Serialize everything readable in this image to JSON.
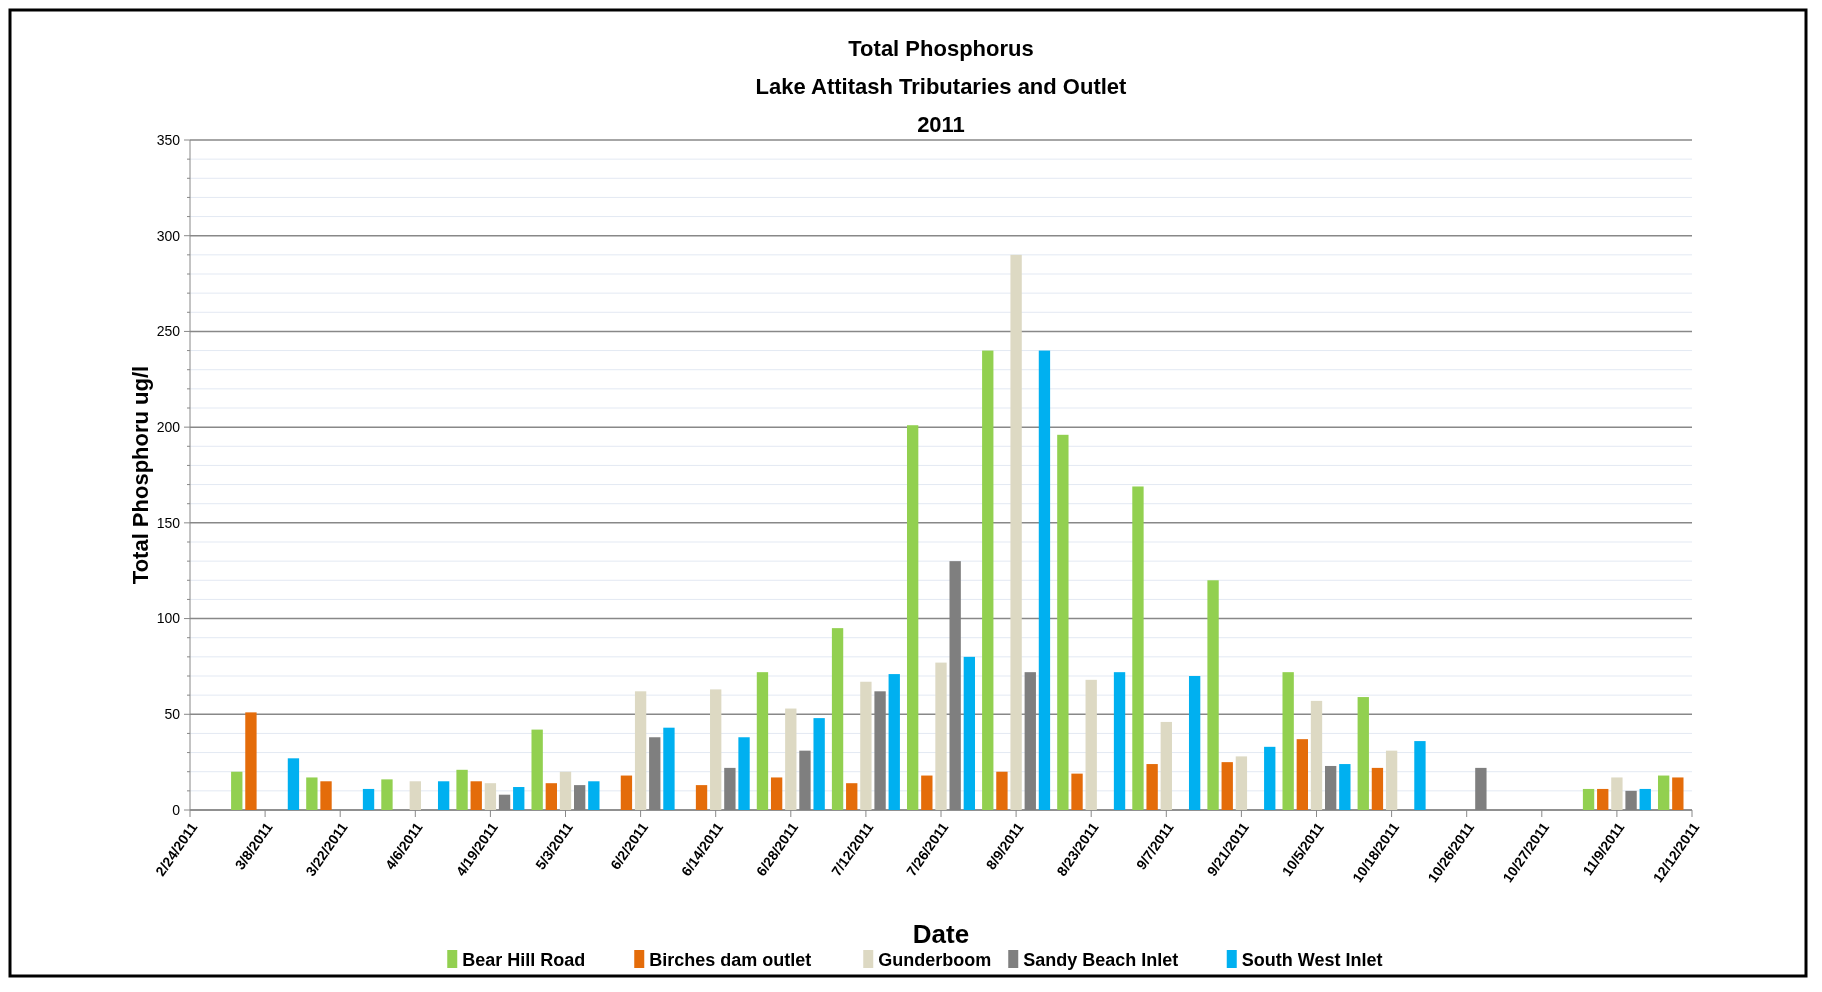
{
  "chart_data": {
    "type": "bar",
    "title": "Total Phosphorus\nLake Attitash Tributaries and Outlet\n2011",
    "xlabel": "Date",
    "ylabel": "Total Phosphoru ug/l",
    "categories": [
      "2/24/2011",
      "3/8/2011",
      "3/22/2011",
      "4/6/2011",
      "4/19/2011",
      "5/3/2011",
      "6/2/2011",
      "6/14/2011",
      "6/28/2011",
      "7/12/2011",
      "7/26/2011",
      "8/9/2011",
      "8/23/2011",
      "9/7/2011",
      "9/21/2011",
      "10/5/2011",
      "10/18/2011",
      "10/26/2011",
      "10/27/2011",
      "11/9/2011",
      "12/12/2011"
    ],
    "series": [
      {
        "name": "Bear Hill Road",
        "color": "#92d050",
        "values": [
          null,
          20,
          17,
          16,
          21,
          42,
          null,
          null,
          72,
          95,
          201,
          240,
          196,
          169,
          120,
          72,
          59,
          null,
          null,
          11,
          18
        ]
      },
      {
        "name": "Birches dam outlet",
        "color": "#e46c0a",
        "values": [
          null,
          51,
          15,
          null,
          15,
          14,
          18,
          13,
          17,
          14,
          18,
          20,
          19,
          24,
          25,
          37,
          22,
          null,
          null,
          11,
          17
        ]
      },
      {
        "name": "Gunderboom",
        "color": "#ddd9c3",
        "values": [
          null,
          null,
          null,
          15,
          14,
          20,
          62,
          63,
          53,
          67,
          77,
          290,
          68,
          46,
          28,
          57,
          31,
          null,
          null,
          17,
          null
        ]
      },
      {
        "name": "Sandy Beach Inlet",
        "color": "#7f7f7f",
        "values": [
          null,
          null,
          null,
          null,
          8,
          13,
          38,
          22,
          31,
          62,
          130,
          72,
          null,
          null,
          null,
          23,
          null,
          22,
          null,
          10,
          null
        ]
      },
      {
        "name": "South West Inlet",
        "color": "#00b0f0",
        "values": [
          null,
          27,
          11,
          15,
          12,
          15,
          43,
          38,
          48,
          71,
          80,
          240,
          72,
          70,
          33,
          24,
          36,
          null,
          null,
          11,
          null
        ]
      }
    ],
    "ylim": [
      0,
      350
    ],
    "yticks": [
      0,
      {
        "value": 10,
        "label": null
      },
      {
        "value": 20,
        "label": null
      },
      {
        "value": 30,
        "label": null
      },
      {
        "value": 40,
        "label": null
      },
      50,
      {
        "value": 60,
        "label": null
      },
      {
        "value": 70,
        "label": null
      },
      {
        "value": 80,
        "label": null
      },
      {
        "value": 90,
        "label": null
      },
      100,
      {
        "value": 110,
        "label": null
      },
      {
        "value": 120,
        "label": null
      },
      {
        "value": 130,
        "label": null
      },
      {
        "value": 140,
        "label": null
      },
      150,
      {
        "value": 160,
        "label": null
      },
      {
        "value": 170,
        "label": null
      },
      {
        "value": 180,
        "label": null
      },
      {
        "value": 190,
        "label": null
      },
      200,
      {
        "value": 210,
        "label": null
      },
      {
        "value": 220,
        "label": null
      },
      {
        "value": 230,
        "label": null
      },
      {
        "value": 240,
        "label": null
      },
      250,
      {
        "value": 260,
        "label": null
      },
      {
        "value": 270,
        "label": null
      },
      {
        "value": 280,
        "label": null
      },
      {
        "value": 290,
        "label": null
      },
      300,
      {
        "value": 310,
        "label": null
      },
      {
        "value": 320,
        "label": null
      },
      {
        "value": 330,
        "label": null
      },
      {
        "value": 340,
        "label": null
      },
      350
    ],
    "grid": true,
    "legend": "bottom"
  }
}
